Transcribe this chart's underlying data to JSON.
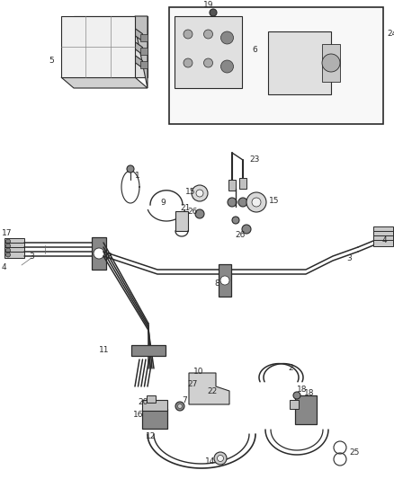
{
  "background_color": "#ffffff",
  "line_color": "#2a2a2a",
  "fig_width": 4.38,
  "fig_height": 5.33,
  "dpi": 100,
  "label_size": 6.5
}
